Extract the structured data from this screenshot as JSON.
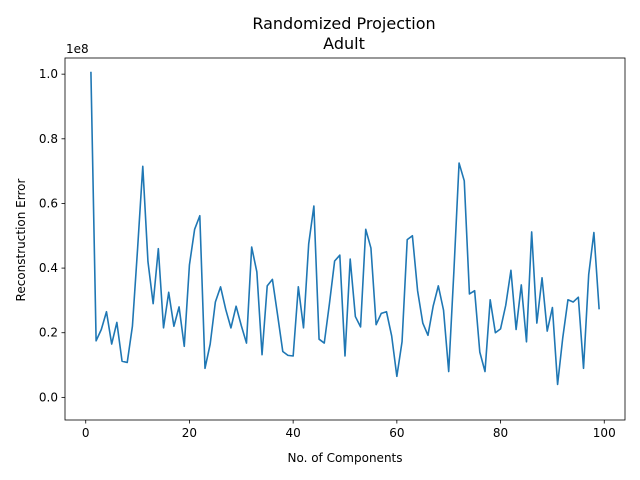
{
  "chart_data": {
    "type": "line",
    "title": "Randomized Projection",
    "subtitle": "Adult",
    "xlabel": "No. of Components",
    "ylabel": "Reconstruction Error",
    "y_offset_label": "1e8",
    "xlim": [
      -4,
      104
    ],
    "ylim": [
      -0.07,
      1.05
    ],
    "y_scale": 100000000,
    "grid": false,
    "line_color": "#1f77b4",
    "x_ticks": [
      0,
      20,
      40,
      60,
      80,
      100
    ],
    "x_tick_labels": [
      "0",
      "20",
      "40",
      "60",
      "80",
      "100"
    ],
    "y_ticks": [
      0.0,
      0.2,
      0.4,
      0.6,
      0.8,
      1.0
    ],
    "y_tick_labels": [
      "0.0",
      "0.2",
      "0.4",
      "0.6",
      "0.8",
      "1.0"
    ],
    "series": [
      {
        "x": [
          1,
          2,
          3,
          4,
          5,
          6,
          7,
          8,
          9,
          10,
          11,
          12,
          13,
          14,
          15,
          16,
          17,
          18,
          19,
          20,
          21,
          22,
          23,
          24,
          25,
          26,
          27,
          28,
          29,
          30,
          31,
          32,
          33,
          34,
          35,
          36,
          37,
          38,
          39,
          40,
          41,
          42,
          43,
          44,
          45,
          46,
          47,
          48,
          49,
          50,
          51,
          52,
          53,
          54,
          55,
          56,
          57,
          58,
          59,
          60,
          61,
          62,
          63,
          64,
          65,
          66,
          67,
          68,
          69,
          70,
          71,
          72,
          73,
          74,
          75,
          76,
          77,
          78,
          79,
          80,
          81,
          82,
          83,
          84,
          85,
          86,
          87,
          88,
          89,
          90,
          91,
          92,
          93,
          94,
          95,
          96,
          97,
          98,
          99
        ],
        "values": [
          1.005,
          0.175,
          0.21,
          0.265,
          0.165,
          0.232,
          0.112,
          0.108,
          0.22,
          0.46,
          0.715,
          0.42,
          0.29,
          0.46,
          0.215,
          0.325,
          0.22,
          0.28,
          0.158,
          0.41,
          0.52,
          0.562,
          0.09,
          0.165,
          0.295,
          0.342,
          0.272,
          0.215,
          0.282,
          0.222,
          0.168,
          0.465,
          0.388,
          0.132,
          0.345,
          0.365,
          0.255,
          0.142,
          0.13,
          0.128,
          0.342,
          0.215,
          0.475,
          0.592,
          0.18,
          0.168,
          0.29,
          0.422,
          0.44,
          0.128,
          0.428,
          0.25,
          0.218,
          0.52,
          0.462,
          0.225,
          0.26,
          0.265,
          0.19,
          0.065,
          0.172,
          0.488,
          0.5,
          0.33,
          0.23,
          0.192,
          0.282,
          0.345,
          0.27,
          0.08,
          0.39,
          0.725,
          0.67,
          0.32,
          0.33,
          0.14,
          0.08,
          0.302,
          0.2,
          0.212,
          0.285,
          0.393,
          0.21,
          0.348,
          0.172,
          0.512,
          0.23,
          0.37,
          0.205,
          0.278,
          0.04,
          0.185,
          0.302,
          0.295,
          0.31,
          0.09,
          0.38,
          0.51,
          0.275
        ]
      }
    ]
  }
}
